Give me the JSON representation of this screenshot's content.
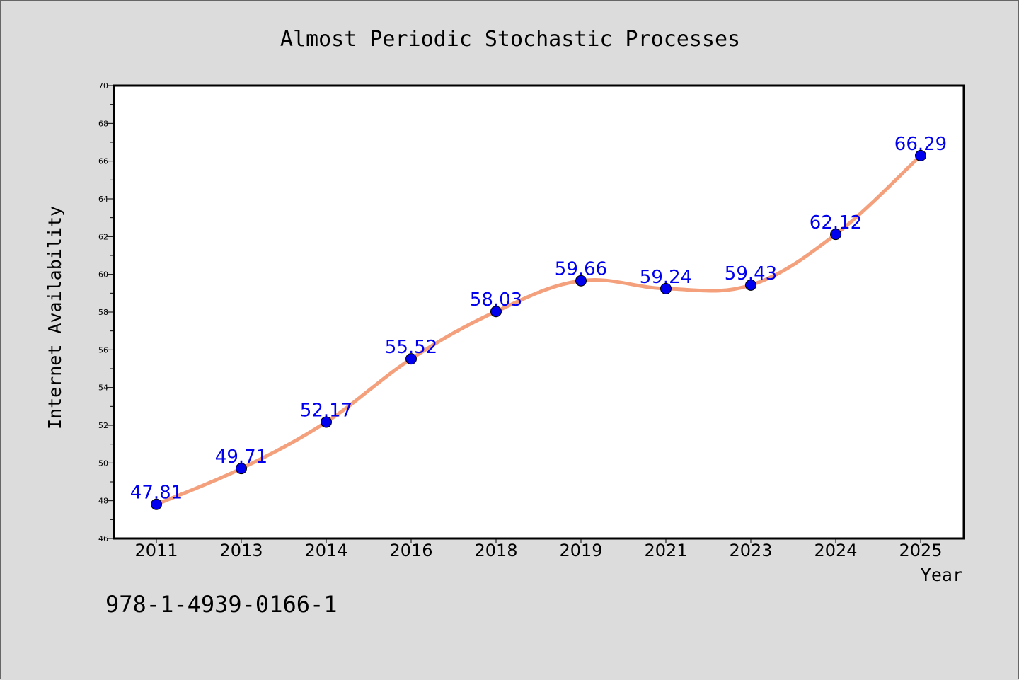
{
  "chart_data": {
    "type": "line",
    "title": "Almost Periodic Stochastic Processes",
    "xlabel": "Year",
    "ylabel": "Internet Availability",
    "categories": [
      "2011",
      "2013",
      "2014",
      "2016",
      "2018",
      "2019",
      "2021",
      "2023",
      "2024",
      "2025"
    ],
    "series": [
      {
        "values": [
          47.81,
          49.71,
          52.17,
          55.52,
          58.03,
          59.66,
          59.24,
          59.43,
          62.12,
          66.29
        ],
        "labels": [
          "47.81",
          "49.71",
          "52.17",
          "55.52",
          "58.03",
          "59.66",
          "59.24",
          "59.43",
          "62.12",
          "66.29"
        ],
        "line_color": "#f4a07c",
        "marker_color": "#0000ee"
      }
    ],
    "ylim": [
      46,
      70
    ],
    "yticks": [
      "46",
      "48",
      "50",
      "52",
      "54",
      "56",
      "58",
      "60",
      "62",
      "64",
      "66",
      "68",
      "70"
    ],
    "grid": false,
    "legend": "none"
  },
  "footer": {
    "isbn": "978-1-4939-0166-1"
  },
  "colors": {
    "background": "#dcdcdc",
    "plot_background": "#ffffff",
    "label_color": "#0000ee"
  }
}
